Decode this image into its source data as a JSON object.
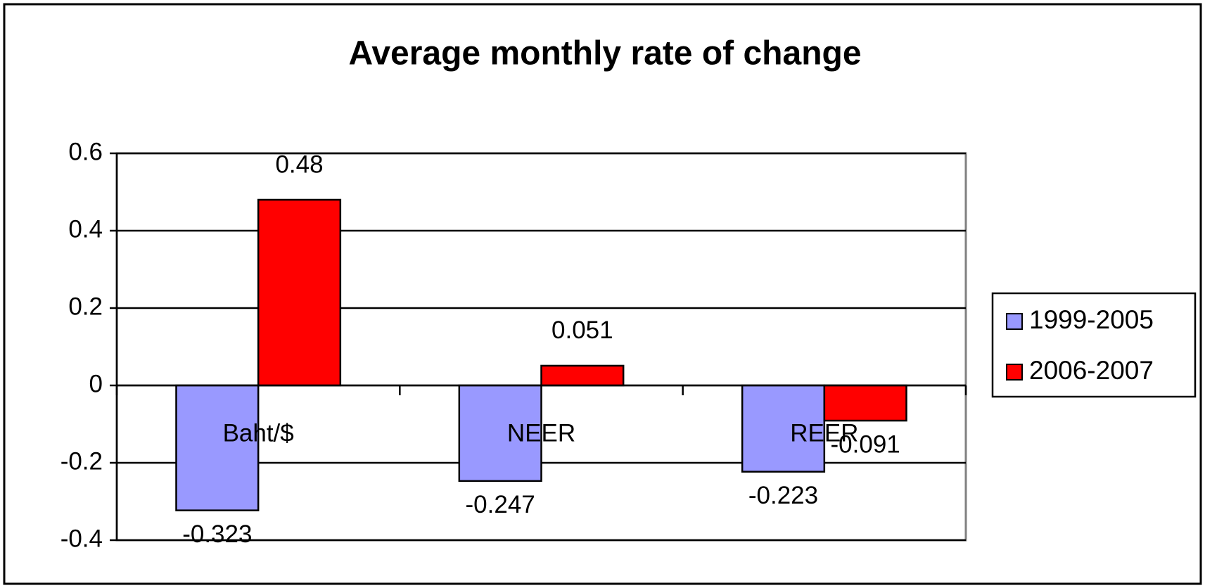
{
  "chart_data": {
    "type": "bar",
    "title": "Average monthly rate of change",
    "categories": [
      "Baht/$",
      "NEER",
      "REER"
    ],
    "series": [
      {
        "name": "1999-2005",
        "color": "#9999ff",
        "values": [
          -0.323,
          -0.247,
          -0.223
        ]
      },
      {
        "name": "2006-2007",
        "color": "#ff0000",
        "values": [
          0.48,
          0.051,
          -0.091
        ]
      }
    ],
    "ylim": [
      -0.4,
      0.6
    ],
    "yticks": [
      -0.4,
      -0.2,
      0,
      0.2,
      0.4,
      0.6
    ],
    "grid": true,
    "legend": "right"
  }
}
